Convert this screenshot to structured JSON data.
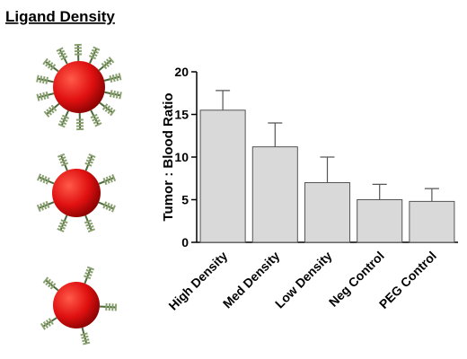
{
  "chart_data": {
    "type": "bar",
    "title": "Ligand Density",
    "y_label": "Tumor : Blood Ratio",
    "categories": [
      "High Density",
      "Med Density",
      "Low Density",
      "Neg Control",
      "PEG Control"
    ],
    "values": [
      15.5,
      11.2,
      7.0,
      5.0,
      4.8
    ],
    "errors": [
      2.3,
      2.8,
      3.0,
      1.8,
      1.5
    ],
    "color": "#d9d9d9",
    "ylim": [
      0,
      20
    ],
    "yticks": [
      0,
      5,
      10,
      15,
      20
    ],
    "grid": false
  }
}
